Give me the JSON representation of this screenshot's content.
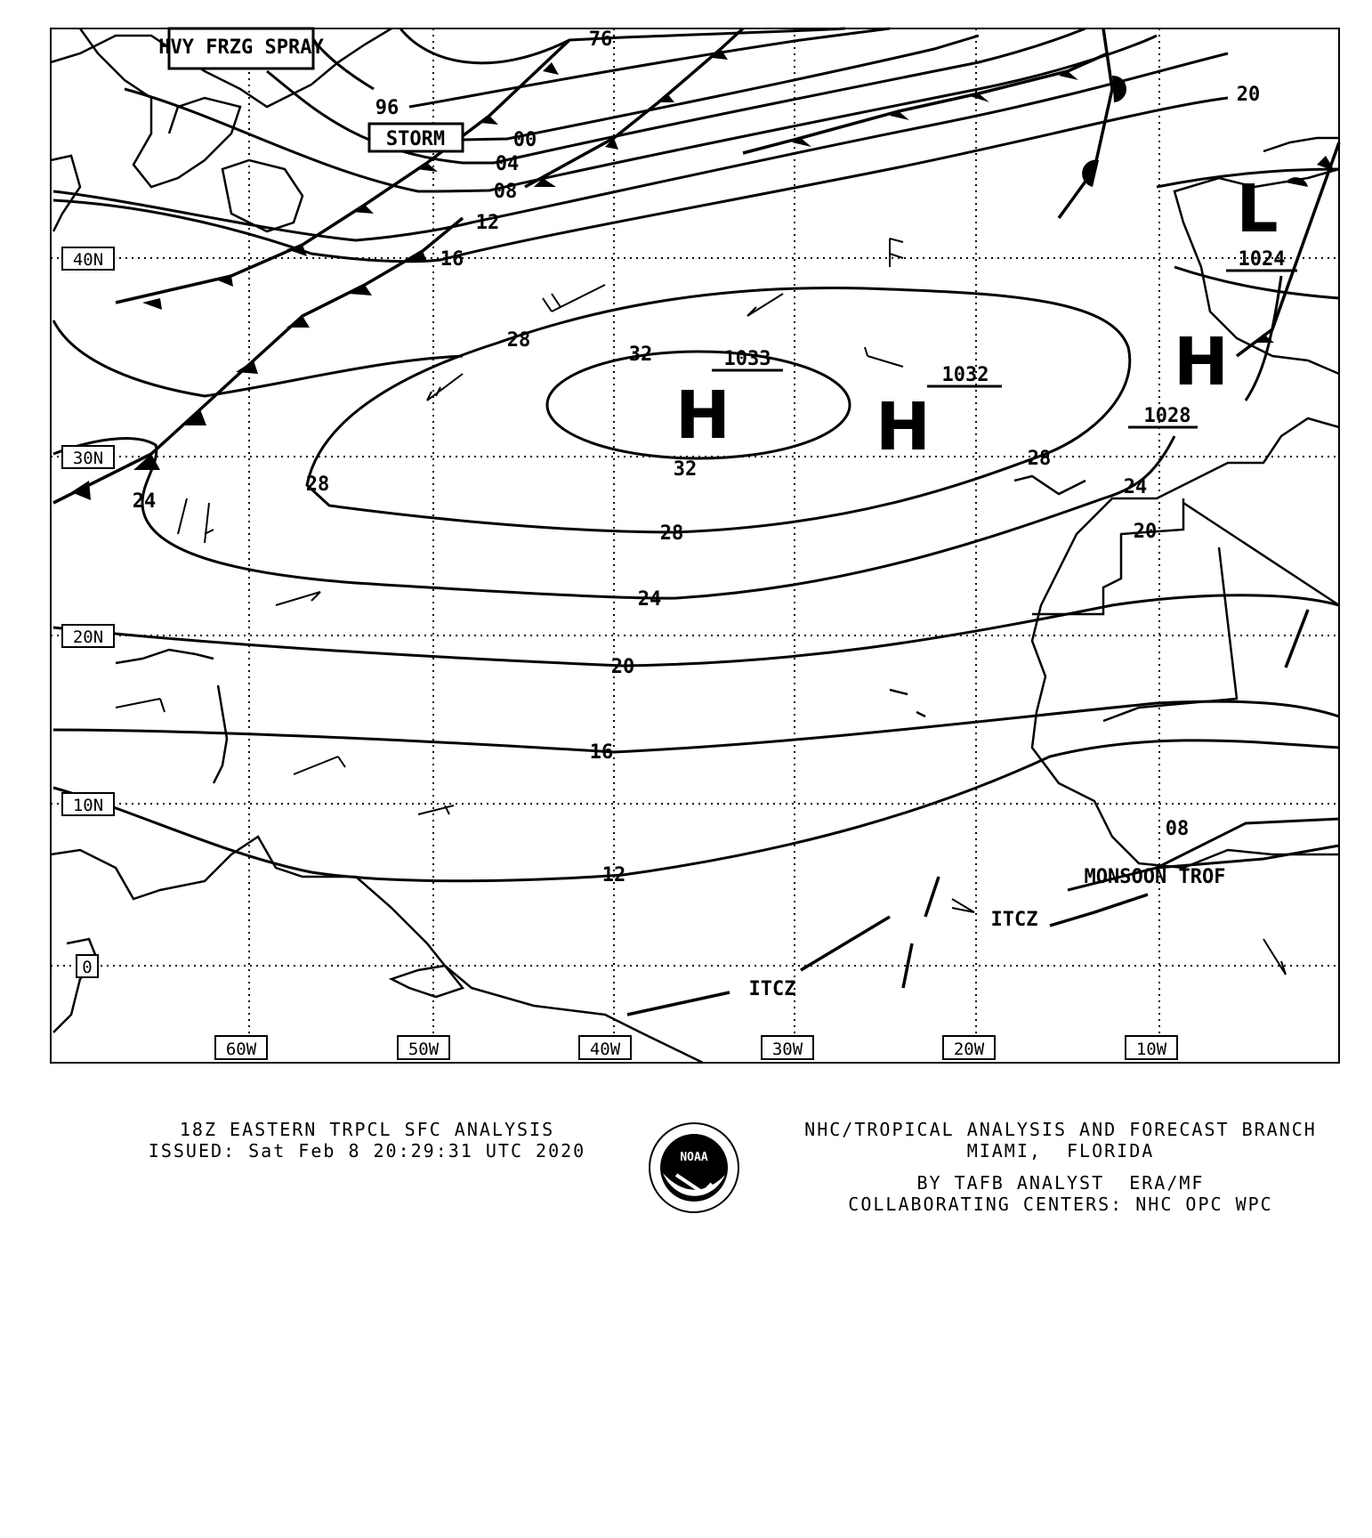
{
  "map": {
    "lat_labels": [
      "40N",
      "30N",
      "20N",
      "10N",
      "0"
    ],
    "lon_labels": [
      "60W",
      "50W",
      "40W",
      "30W",
      "20W",
      "10W"
    ],
    "isobar_labels": [
      "76",
      "96",
      "00",
      "04",
      "08",
      "12",
      "16",
      "28",
      "32",
      "32",
      "28",
      "28",
      "28",
      "24",
      "24",
      "24",
      "20",
      "16",
      "12",
      "20",
      "08",
      "20"
    ],
    "highs": [
      {
        "symbol": "H",
        "pressure": "1033"
      },
      {
        "symbol": "H",
        "pressure": "1032"
      },
      {
        "symbol": "H",
        "pressure": "1028"
      }
    ],
    "lows": [
      {
        "symbol": "L",
        "pressure": "1024"
      }
    ],
    "warnings": [
      "HVY FRZG SPRAY",
      "STORM"
    ],
    "features": [
      "ITCZ",
      "ITCZ",
      "MONSOON TROF"
    ]
  },
  "footer": {
    "title": "18Z EASTERN TRPCL SFC ANALYSIS",
    "issued": "ISSUED: Sat Feb 8 20:29:31 UTC 2020",
    "branch": "NHC/TROPICAL ANALYSIS AND FORECAST BRANCH",
    "location": "MIAMI,  FLORIDA",
    "analyst": "BY TAFB ANALYST  ERA/MF",
    "centers": "COLLABORATING CENTERS: NHC OPC WPC",
    "logo_text": "NOAA"
  }
}
